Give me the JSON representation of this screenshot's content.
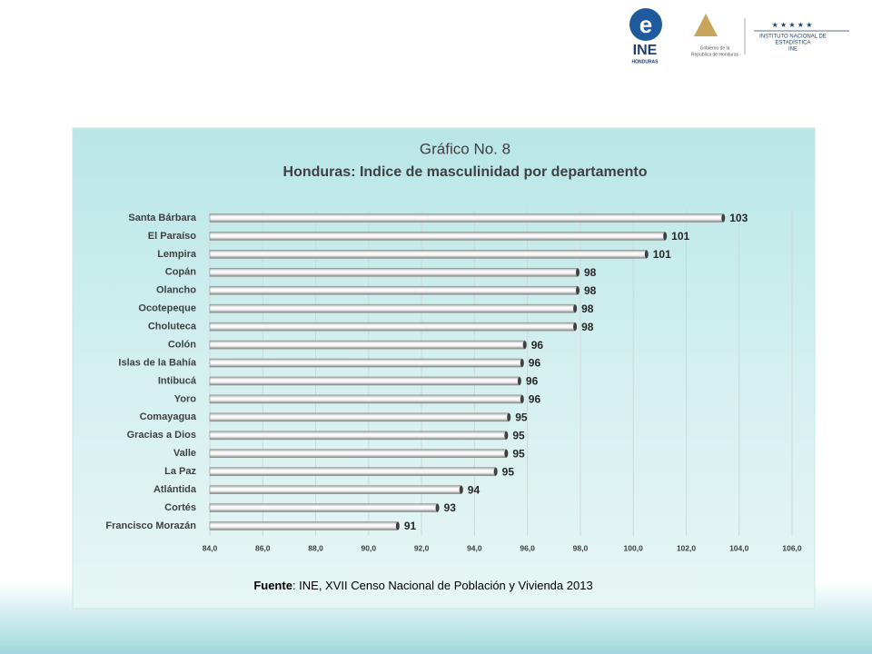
{
  "header": {
    "logo_text": "INE",
    "logo_subtext": "HONDURAS",
    "gov_line1": "Gobierno de la",
    "gov_line2": "República de Honduras",
    "inst_line1": "INSTITUTO NACIONAL DE",
    "inst_line2": "ESTADÍSTICA",
    "inst_line3": "INE"
  },
  "chart_data": {
    "type": "bar",
    "orientation": "horizontal",
    "title": "Gráfico No. 8",
    "subtitle": "Honduras: Indice de masculinidad  por departamento",
    "categories": [
      "Santa Bárbara",
      "El Paraíso",
      "Lempira",
      "Copán",
      "Olancho",
      "Ocotepeque",
      "Choluteca",
      "Colón",
      "Islas de la Bahía",
      "Intibucá",
      "Yoro",
      "Comayagua",
      "Gracias a Dios",
      "Valle",
      "La Paz",
      "Atlántida",
      "Cortés",
      "Francisco Morazán"
    ],
    "values": [
      103.4,
      101.2,
      100.5,
      97.9,
      97.9,
      97.8,
      97.8,
      95.9,
      95.8,
      95.7,
      95.8,
      95.3,
      95.2,
      95.2,
      94.8,
      93.5,
      92.6,
      91.1
    ],
    "value_labels": [
      "103",
      "101",
      "101",
      "98",
      "98",
      "98",
      "98",
      "96",
      "96",
      "96",
      "96",
      "95",
      "95",
      "95",
      "95",
      "94",
      "93",
      "91"
    ],
    "color": "#d9d9d9",
    "xlim": [
      84,
      106
    ],
    "xticks": [
      {
        "value": 84,
        "label": "84,0"
      },
      {
        "value": 86,
        "label": "86,0"
      },
      {
        "value": 88,
        "label": "88,0"
      },
      {
        "value": 90,
        "label": "90,0"
      },
      {
        "value": 92,
        "label": "92,0"
      },
      {
        "value": 94,
        "label": "94,0"
      },
      {
        "value": 96,
        "label": "96,0"
      },
      {
        "value": 98,
        "label": "98,0"
      },
      {
        "value": 100,
        "label": "100,0"
      },
      {
        "value": 102,
        "label": "102,0"
      },
      {
        "value": 104,
        "label": "104,0"
      },
      {
        "value": 106,
        "label": "106,0"
      }
    ],
    "grid": true,
    "source_label": "Fuente",
    "source": ": INE, XVII Censo Nacional de Población y Vivienda 2013"
  }
}
